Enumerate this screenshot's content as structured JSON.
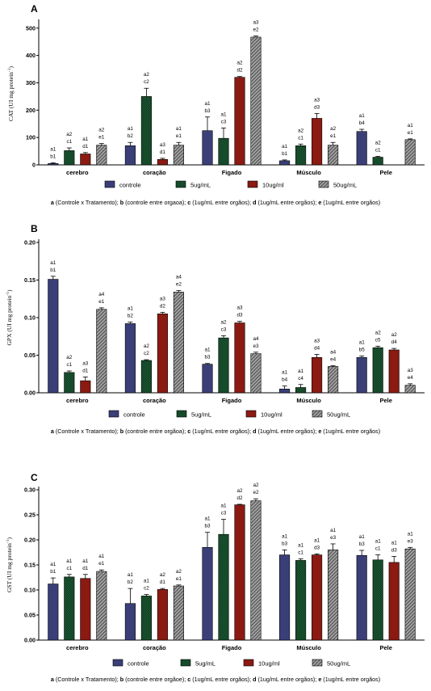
{
  "chart_data": [
    {
      "type": "bar",
      "panel": "A",
      "ylabel": "CAT (UI mg protein",
      "ylabel_sup": "-1",
      "ylabel_end": ")",
      "yticks": [
        "0",
        "100",
        "200",
        "300",
        "400",
        "500"
      ],
      "ylim": [
        0,
        520
      ],
      "categories": [
        "cerebro",
        "coração",
        "Figado",
        "Músculo",
        "Pele"
      ],
      "series": [
        {
          "name": "controle",
          "values": [
            5,
            70,
            125,
            15,
            122
          ],
          "errors": [
            3,
            12,
            50,
            3,
            8
          ]
        },
        {
          "name": "5ug/mL",
          "values": [
            52,
            250,
            97,
            70,
            28
          ],
          "errors": [
            10,
            30,
            38,
            6,
            3
          ]
        },
        {
          "name": "10ug/ml",
          "values": [
            40,
            20,
            320,
            170,
            0
          ],
          "errors": [
            5,
            4,
            3,
            18,
            0
          ]
        },
        {
          "name": "50ug/mL",
          "values": [
            72,
            72,
            467,
            72,
            92
          ],
          "errors": [
            6,
            10,
            4,
            10,
            3
          ]
        }
      ],
      "labels": [
        [
          [
            "a1",
            "b1"
          ],
          [
            "a1",
            "b2"
          ],
          [
            "a1",
            "b3"
          ],
          [
            "a1",
            "b1"
          ],
          [
            "a1",
            "b4"
          ]
        ],
        [
          [
            "a2",
            "c1"
          ],
          [
            "a2",
            "c2"
          ],
          [
            "a1",
            "c3"
          ],
          [
            "a2",
            "c1"
          ],
          [
            "a2",
            "c1"
          ]
        ],
        [
          [
            "a1",
            "d1"
          ],
          [
            "a3",
            "d1"
          ],
          [
            "a2",
            "d2"
          ],
          [
            "a3",
            "d3"
          ],
          []
        ],
        [
          [
            "a2",
            "e1"
          ],
          [
            "a1",
            "e1"
          ],
          [
            "a3",
            "e2"
          ],
          [
            "a2",
            "e1"
          ],
          [
            "a1",
            "e1"
          ]
        ]
      ],
      "legend": [
        "controle",
        "5ug/mL",
        "10ug/ml",
        "50ug/mL"
      ],
      "footnote": [
        {
          "b": "a",
          "t": " (Controle x Tratamento); "
        },
        {
          "b": "b",
          "t": " (controle entre orgaoa); "
        },
        {
          "b": "c",
          "t": " (1ug/mL entre orgãos); "
        },
        {
          "b": "d",
          "t": " (1ug/mL entre orgãos); "
        },
        {
          "b": "e",
          "t": " (1ug/mL entre orgãos)"
        }
      ]
    },
    {
      "type": "bar",
      "panel": "B",
      "ylabel": "GPX (UI mg protein",
      "ylabel_sup": "-1",
      "ylabel_end": ")",
      "yticks": [
        "0.00",
        "0.05",
        "0.10",
        "0.15",
        "0.20"
      ],
      "ylim": [
        0,
        0.2
      ],
      "categories": [
        "cerebro",
        "coração",
        "Figado",
        "Músculo",
        "Pele"
      ],
      "series": [
        {
          "name": "controle",
          "values": [
            0.151,
            0.092,
            0.038,
            0.005,
            0.047
          ],
          "errors": [
            0.004,
            0.002,
            0.001,
            0.004,
            0.002
          ]
        },
        {
          "name": "5ug/mL",
          "values": [
            0.027,
            0.043,
            0.073,
            0.007,
            0.06
          ],
          "errors": [
            0.002,
            0.001,
            0.003,
            0.004,
            0.002
          ]
        },
        {
          "name": "10ug/ml",
          "values": [
            0.016,
            0.105,
            0.093,
            0.047,
            0.057
          ],
          "errors": [
            0.005,
            0.002,
            0.002,
            0.004,
            0.002
          ]
        },
        {
          "name": "50ug/mL",
          "values": [
            0.111,
            0.134,
            0.052,
            0.035,
            0.01
          ],
          "errors": [
            0.002,
            0.002,
            0.002,
            0.001,
            0.002
          ]
        }
      ],
      "labels": [
        [
          [
            "a1",
            "b1"
          ],
          [
            "a1",
            "b2"
          ],
          [
            "a1",
            "b3"
          ],
          [
            "a1",
            "b4"
          ],
          [
            "a1",
            "b5"
          ]
        ],
        [
          [
            "a2",
            "c1"
          ],
          [
            "a2",
            "c2"
          ],
          [
            "a2",
            "c3"
          ],
          [
            "a1",
            "c4"
          ],
          [
            "a2",
            "c5"
          ]
        ],
        [
          [
            "a3",
            "d1"
          ],
          [
            "a3",
            "d2"
          ],
          [
            "a3",
            "d3"
          ],
          [
            "a3",
            "d4"
          ],
          [
            "a2",
            "d4"
          ]
        ],
        [
          [
            "a4",
            "e1"
          ],
          [
            "a4",
            "e2"
          ],
          [
            "a4",
            "e3"
          ],
          [
            "a4",
            "e4"
          ],
          [
            "a3",
            "e4"
          ]
        ]
      ],
      "legend": [
        "controle",
        "5ug/mL",
        "10ug/ml",
        "50ug/mL"
      ],
      "footnote": [
        {
          "b": "a",
          "t": " (Controle x Tratamento); "
        },
        {
          "b": "b",
          "t": " (controle entre orgãoa); "
        },
        {
          "b": "c",
          "t": " (1ug/mL entre orgãos); "
        },
        {
          "b": "d",
          "t": " (1ug/mL entre orgãos); "
        },
        {
          "b": "e",
          "t": " (1ug/mL entre orgãos)"
        }
      ]
    },
    {
      "type": "bar",
      "panel": "C",
      "ylabel": "GST (UI mg protein",
      "ylabel_sup": "-1",
      "ylabel_end": ")",
      "yticks": [
        "0.00",
        "0.05",
        "0.10",
        "0.15",
        "0.20",
        "0.25",
        "0.30"
      ],
      "ylim": [
        0,
        0.3
      ],
      "categories": [
        "cerebro",
        "coração",
        "Figado",
        "Músculo",
        "Pele"
      ],
      "series": [
        {
          "name": "controle",
          "values": [
            0.112,
            0.073,
            0.185,
            0.17,
            0.169
          ],
          "errors": [
            0.012,
            0.03,
            0.03,
            0.01,
            0.01
          ]
        },
        {
          "name": "5ug/mL",
          "values": [
            0.126,
            0.088,
            0.211,
            0.159,
            0.16
          ],
          "errors": [
            0.005,
            0.003,
            0.03,
            0.003,
            0.01
          ]
        },
        {
          "name": "10ug/ml",
          "values": [
            0.123,
            0.101,
            0.27,
            0.17,
            0.155
          ],
          "errors": [
            0.008,
            0.002,
            0.001,
            0.002,
            0.012
          ]
        },
        {
          "name": "50ug/mL",
          "values": [
            0.137,
            0.108,
            0.278,
            0.18,
            0.182
          ],
          "errors": [
            0.003,
            0.002,
            0.004,
            0.012,
            0.003
          ]
        }
      ],
      "labels": [
        [
          [
            "a1",
            "b1"
          ],
          [
            "a1",
            "b2"
          ],
          [
            "a1",
            "b3"
          ],
          [
            "a1",
            "b3"
          ],
          [
            "a1",
            "b3"
          ]
        ],
        [
          [
            "a1",
            "c1"
          ],
          [
            "a1",
            "c2"
          ],
          [
            "a1",
            "c3"
          ],
          [
            "a1",
            "c1"
          ],
          [
            "a1",
            "c1"
          ]
        ],
        [
          [
            "a1",
            "d1"
          ],
          [
            "a2",
            "d1"
          ],
          [
            "a2",
            "d2"
          ],
          [
            "a1",
            "d3"
          ],
          [
            "a1",
            "d3"
          ]
        ],
        [
          [
            "a1",
            "e1"
          ],
          [
            "a2",
            "e1"
          ],
          [
            "a2",
            "e2"
          ],
          [
            "a1",
            "e3"
          ],
          [
            "a1",
            "e3"
          ]
        ]
      ],
      "legend": [
        "controle",
        "5ug/mL",
        "10ug/ml",
        "50ug/mL"
      ],
      "footnote": [
        {
          "b": "a",
          "t": " (Controle x Tratamento); "
        },
        {
          "b": "b",
          "t": " (controle entre orgãoe); "
        },
        {
          "b": "c",
          "t": " (1ug/mL entre orgãos); "
        },
        {
          "b": "d",
          "t": " (1ug/mL entre orgãos); "
        },
        {
          "b": "e",
          "t": " (1ug/mL entre orgãos)"
        }
      ]
    }
  ],
  "colors": {
    "controle": "#3a3f78",
    "5ug/mL": "#1f5c36",
    "10ug/ml": "#8b1a12",
    "50ug/mL": "#8a8a8a"
  }
}
